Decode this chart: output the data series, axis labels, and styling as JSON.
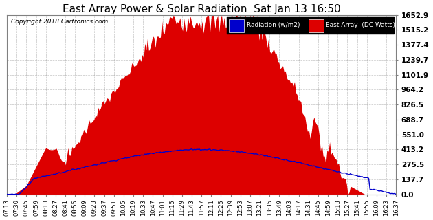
{
  "title": "East Array Power & Solar Radiation  Sat Jan 13 16:50",
  "copyright": "Copyright 2018 Cartronics.com",
  "legend_labels": [
    "Radiation (w/m2)",
    "East Array  (DC Watts)"
  ],
  "legend_colors": [
    "#0000ff",
    "#cc0000"
  ],
  "ytick_labels": [
    "0.0",
    "137.7",
    "275.5",
    "413.2",
    "551.0",
    "688.7",
    "826.5",
    "964.2",
    "1101.9",
    "1239.7",
    "1377.4",
    "1515.2",
    "1652.9"
  ],
  "ytick_values": [
    0.0,
    137.7,
    275.5,
    413.2,
    551.0,
    688.7,
    826.5,
    964.2,
    1101.9,
    1239.7,
    1377.4,
    1515.2,
    1652.9
  ],
  "ymax": 1652.9,
  "background_color": "#ffffff",
  "plot_bg_color": "#ffffff",
  "grid_color": "#aaaaaa",
  "bar_color": "#dd0000",
  "line_color": "#0000cc",
  "title_fontsize": 11,
  "xtick_labels": [
    "07:13",
    "07:30",
    "07:45",
    "07:59",
    "08:13",
    "08:27",
    "08:41",
    "08:55",
    "09:09",
    "09:23",
    "09:37",
    "09:51",
    "10:05",
    "10:19",
    "10:33",
    "10:47",
    "11:01",
    "11:15",
    "11:29",
    "11:43",
    "11:57",
    "12:11",
    "12:25",
    "12:39",
    "12:53",
    "13:07",
    "13:21",
    "13:35",
    "13:49",
    "14:03",
    "14:17",
    "14:31",
    "14:45",
    "14:59",
    "15:13",
    "15:27",
    "15:41",
    "15:55",
    "16:09",
    "16:23",
    "16:37"
  ]
}
